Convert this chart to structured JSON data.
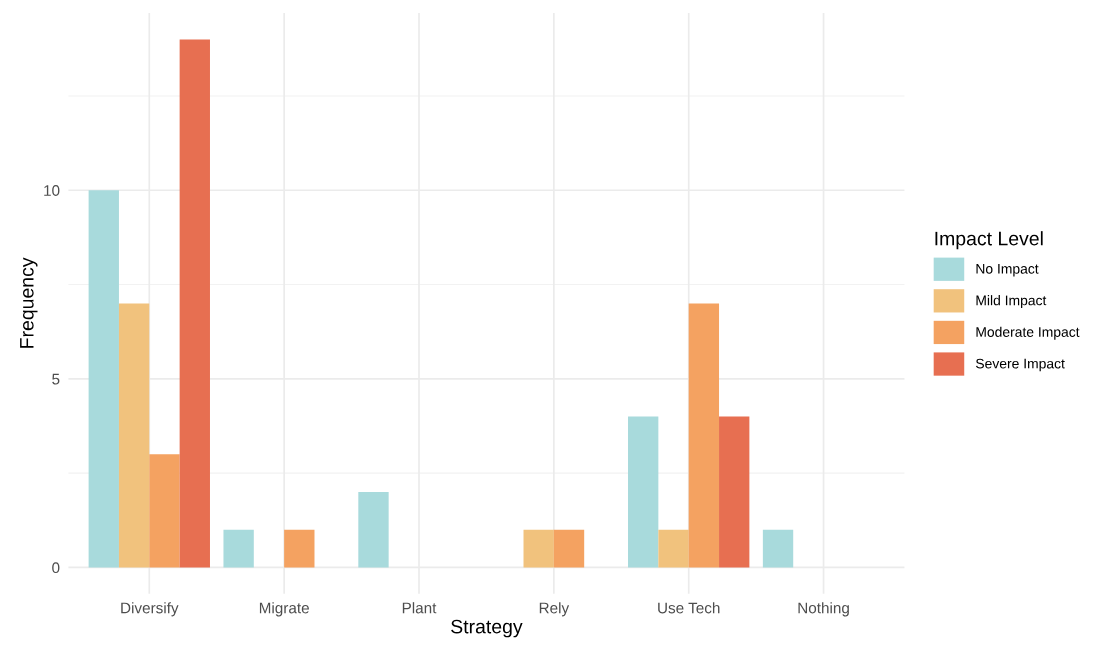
{
  "chart_data": {
    "type": "bar",
    "xlabel": "Strategy",
    "ylabel": "Frequency",
    "legend_title": "Impact Level",
    "categories": [
      "Diversify",
      "Migrate",
      "Plant",
      "Rely",
      "Use Tech",
      "Nothing"
    ],
    "series": [
      {
        "name": "No Impact",
        "color": "#a8dadc",
        "values": [
          10,
          1,
          2,
          0,
          4,
          1
        ]
      },
      {
        "name": "Mild Impact",
        "color": "#f1c27d",
        "values": [
          7,
          0,
          0,
          1,
          1,
          0
        ]
      },
      {
        "name": "Moderate Impact",
        "color": "#f4a261",
        "values": [
          3,
          1,
          0,
          1,
          7,
          0
        ]
      },
      {
        "name": "Severe Impact",
        "color": "#e76f51",
        "values": [
          14,
          0,
          0,
          0,
          4,
          0
        ]
      }
    ],
    "ylim": [
      -0.7,
      14.7
    ],
    "yticks": [
      0,
      5,
      10
    ],
    "grid": true,
    "legend": "right"
  }
}
